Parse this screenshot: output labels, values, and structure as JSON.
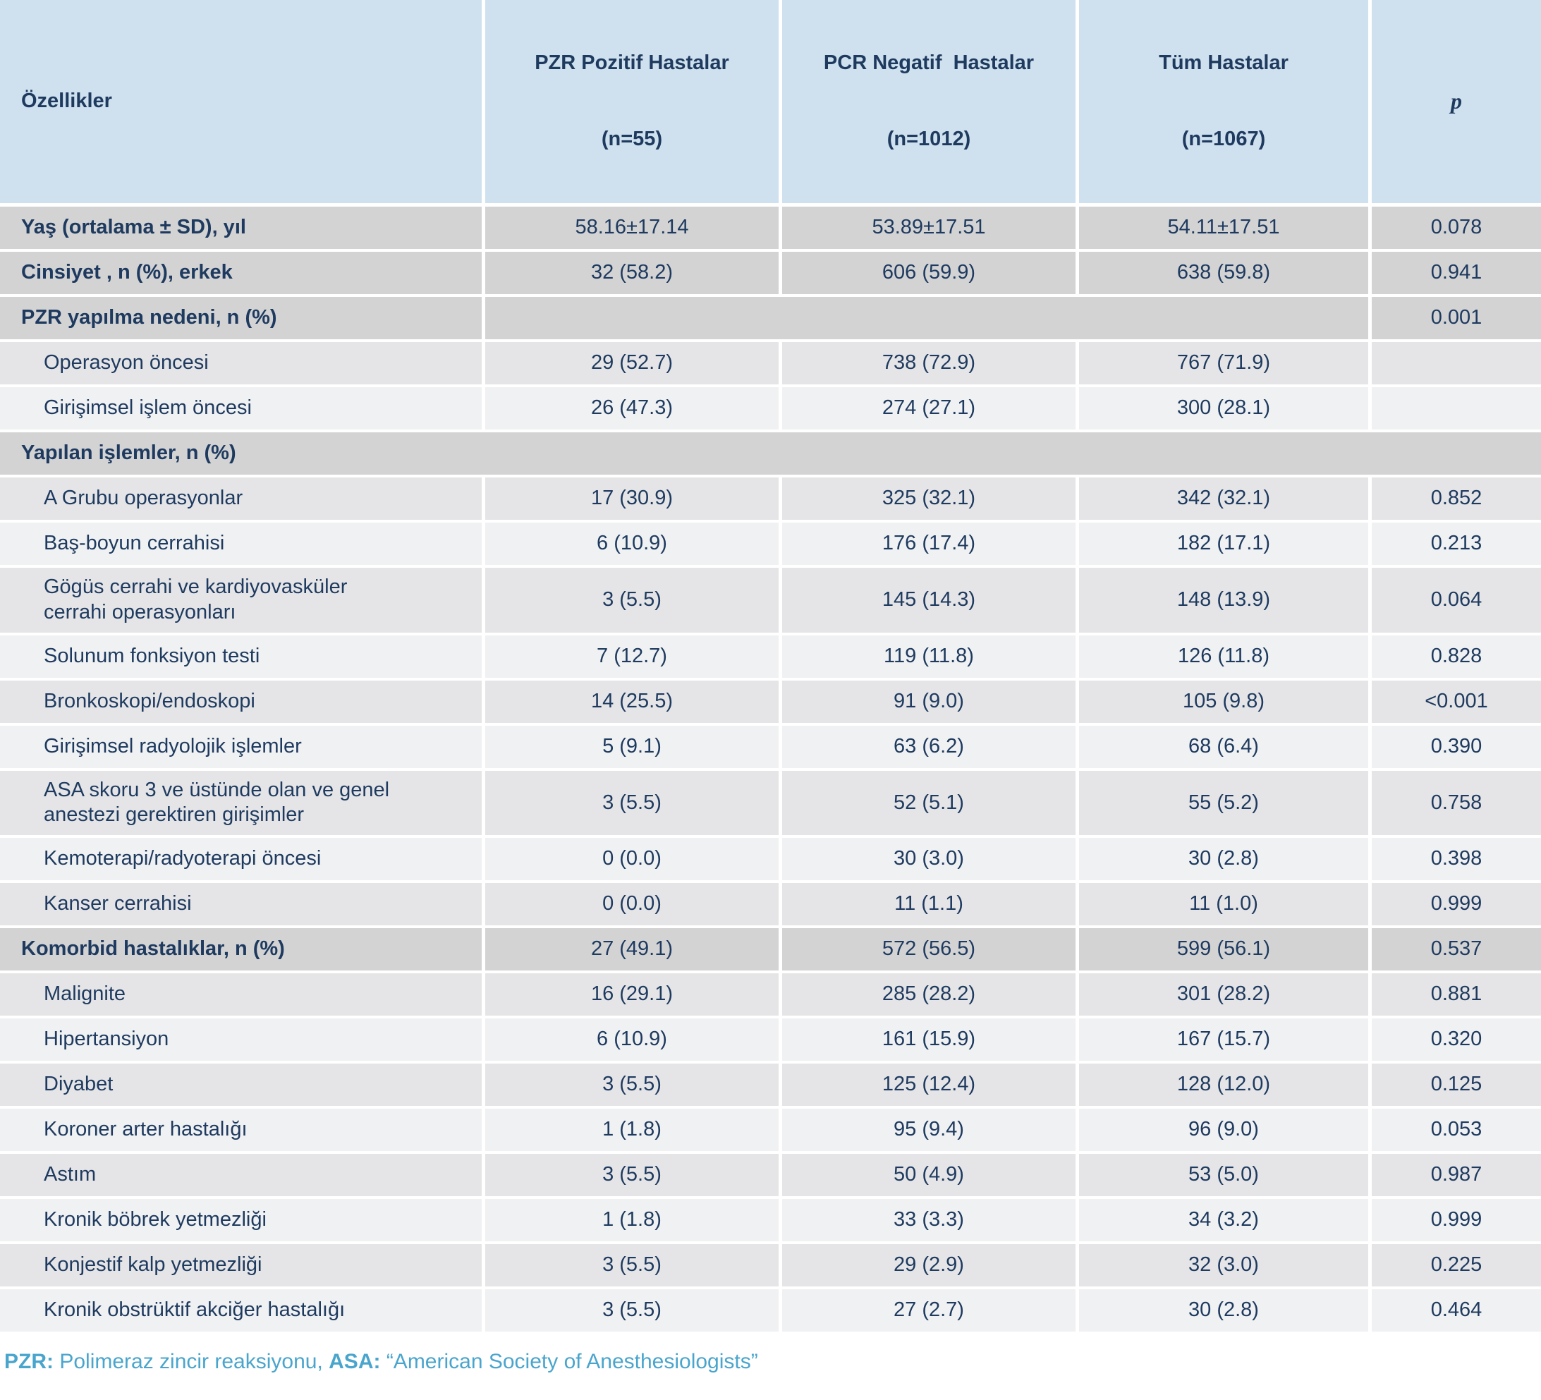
{
  "table": {
    "columns": [
      {
        "label": "Özellikler",
        "sub": ""
      },
      {
        "label": "PZR Pozitif Hastalar",
        "sub": "(n=55)"
      },
      {
        "label": "PCR Negatif  Hastalar",
        "sub": "(n=1012)"
      },
      {
        "label": "Tüm Hastalar",
        "sub": "(n=1067)"
      },
      {
        "label": "p",
        "sub": ""
      }
    ],
    "rows": [
      {
        "label": "Yaş (ortalama ± SD), yıl",
        "style": "section",
        "shade": "dark",
        "cells": [
          "58.16±17.14",
          "53.89±17.51",
          "54.11±17.51"
        ],
        "p": "0.078"
      },
      {
        "label": "Cinsiyet , n (%), erkek",
        "style": "section",
        "shade": "dark",
        "cells": [
          "32 (58.2)",
          "606 (59.9)",
          "638 (59.8)"
        ],
        "p": "0.941"
      },
      {
        "label": "PZR yapılma nedeni, n (%)",
        "style": "section",
        "shade": "dark",
        "merged": true,
        "p": "0.001"
      },
      {
        "label": "Operasyon öncesi",
        "style": "sub",
        "shade": "a",
        "cells": [
          "29 (52.7)",
          "738 (72.9)",
          "767 (71.9)"
        ],
        "p": ""
      },
      {
        "label": "Girişimsel işlem öncesi",
        "style": "sub",
        "shade": "b",
        "cells": [
          "26 (47.3)",
          "274 (27.1)",
          "300 (28.1)"
        ],
        "p": ""
      },
      {
        "label": "Yapılan işlemler, n (%)",
        "style": "section",
        "shade": "dark",
        "fullspan": true
      },
      {
        "label": "A Grubu operasyonlar",
        "style": "sub",
        "shade": "a",
        "cells": [
          "17 (30.9)",
          "325 (32.1)",
          "342 (32.1)"
        ],
        "p": "0.852"
      },
      {
        "label": "Baş-boyun cerrahisi",
        "style": "sub",
        "shade": "b",
        "cells": [
          "6 (10.9)",
          "176 (17.4)",
          "182 (17.1)"
        ],
        "p": "0.213"
      },
      {
        "label": "Gögüs cerrahi ve kardiyovasküler\ncerrahi operasyonları",
        "style": "sub",
        "shade": "a",
        "cells": [
          "3 (5.5)",
          "145 (14.3)",
          "148 (13.9)"
        ],
        "p": "0.064"
      },
      {
        "label": "Solunum fonksiyon testi",
        "style": "sub",
        "shade": "b",
        "cells": [
          "7 (12.7)",
          "119 (11.8)",
          "126 (11.8)"
        ],
        "p": "0.828"
      },
      {
        "label": "Bronkoskopi/endoskopi",
        "style": "sub",
        "shade": "a",
        "cells": [
          "14 (25.5)",
          "91 (9.0)",
          "105 (9.8)"
        ],
        "p": "<0.001"
      },
      {
        "label": "Girişimsel radyolojik işlemler",
        "style": "sub",
        "shade": "b",
        "cells": [
          "5 (9.1)",
          "63 (6.2)",
          "68 (6.4)"
        ],
        "p": "0.390"
      },
      {
        "label": "ASA skoru 3 ve üstünde olan ve genel\nanestezi gerektiren girişimler",
        "style": "sub",
        "shade": "a",
        "cells": [
          "3 (5.5)",
          "52 (5.1)",
          "55 (5.2)"
        ],
        "p": "0.758"
      },
      {
        "label": "Kemoterapi/radyoterapi öncesi",
        "style": "sub",
        "shade": "b",
        "cells": [
          "0 (0.0)",
          "30 (3.0)",
          "30 (2.8)"
        ],
        "p": "0.398"
      },
      {
        "label": "Kanser cerrahisi",
        "style": "sub",
        "shade": "a",
        "cells": [
          "0 (0.0)",
          "11 (1.1)",
          "11 (1.0)"
        ],
        "p": "0.999"
      },
      {
        "label": "Komorbid hastalıklar, n (%)",
        "style": "section",
        "shade": "dark",
        "cells": [
          "27 (49.1)",
          "572 (56.5)",
          "599 (56.1)"
        ],
        "p": "0.537"
      },
      {
        "label": "Malignite",
        "style": "sub",
        "shade": "a",
        "cells": [
          "16 (29.1)",
          "285 (28.2)",
          "301 (28.2)"
        ],
        "p": "0.881"
      },
      {
        "label": "Hipertansiyon",
        "style": "sub",
        "shade": "b",
        "cells": [
          "6 (10.9)",
          "161 (15.9)",
          "167 (15.7)"
        ],
        "p": "0.320"
      },
      {
        "label": "Diyabet",
        "style": "sub",
        "shade": "a",
        "cells": [
          "3 (5.5)",
          "125 (12.4)",
          "128 (12.0)"
        ],
        "p": "0.125"
      },
      {
        "label": "Koroner arter hastalığı",
        "style": "sub",
        "shade": "b",
        "cells": [
          "1 (1.8)",
          "95 (9.4)",
          "96 (9.0)"
        ],
        "p": "0.053"
      },
      {
        "label": "Astım",
        "style": "sub",
        "shade": "a",
        "cells": [
          "3 (5.5)",
          "50 (4.9)",
          "53 (5.0)"
        ],
        "p": "0.987"
      },
      {
        "label": "Kronik böbrek yetmezliği",
        "style": "sub",
        "shade": "b",
        "cells": [
          "1 (1.8)",
          "33 (3.3)",
          "34 (3.2)"
        ],
        "p": "0.999"
      },
      {
        "label": "Konjestif kalp yetmezliği",
        "style": "sub",
        "shade": "a",
        "cells": [
          "3 (5.5)",
          "29 (2.9)",
          "32 (3.0)"
        ],
        "p": "0.225"
      },
      {
        "label": "Kronik obstrüktif akciğer hastalığı",
        "style": "sub",
        "shade": "b",
        "cells": [
          "3 (5.5)",
          "27 (2.7)",
          "30 (2.8)"
        ],
        "p": "0.464"
      }
    ]
  },
  "footer": {
    "pzr_label": "PZR:",
    "pzr_text": " Polimeraz zincir reaksiyonu, ",
    "asa_label": "ASA:",
    "asa_text": " “American Society of Anesthesiologists”"
  },
  "colors": {
    "header_bg": "#cfe1ee",
    "section_row_bg": "#d3d3d4",
    "row_alt_dark": "#e5e5e7",
    "row_alt_light": "#f0f1f2",
    "text_navy": "#1e3a5f",
    "footnote_teal": "#4aa5cd",
    "divider_white": "#ffffff"
  }
}
